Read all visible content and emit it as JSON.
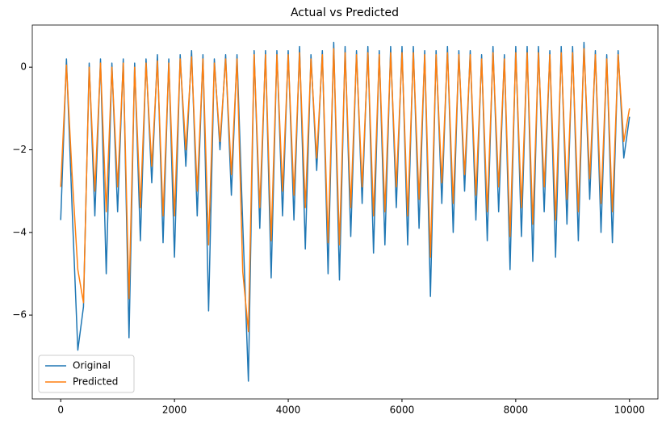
{
  "chart_data": {
    "type": "line",
    "title": "Actual vs Predicted",
    "x": [
      0,
      100,
      200,
      300,
      400,
      500,
      600,
      700,
      800,
      900,
      1000,
      1100,
      1200,
      1300,
      1400,
      1500,
      1600,
      1700,
      1800,
      1900,
      2000,
      2100,
      2200,
      2300,
      2400,
      2500,
      2600,
      2700,
      2800,
      2900,
      3000,
      3100,
      3200,
      3300,
      3400,
      3500,
      3600,
      3700,
      3800,
      3900,
      4000,
      4100,
      4200,
      4300,
      4400,
      4500,
      4600,
      4700,
      4800,
      4900,
      5000,
      5100,
      5200,
      5300,
      5400,
      5500,
      5600,
      5700,
      5800,
      5900,
      6000,
      6100,
      6200,
      6300,
      6400,
      6500,
      6600,
      6700,
      6800,
      6900,
      7000,
      7100,
      7200,
      7300,
      7400,
      7500,
      7600,
      7700,
      7800,
      7900,
      8000,
      8100,
      8200,
      8300,
      8400,
      8500,
      8600,
      8700,
      8800,
      8900,
      9000,
      9100,
      9200,
      9300,
      9400,
      9500,
      9600,
      9700,
      9800,
      9900,
      10000
    ],
    "series": [
      {
        "name": "Original",
        "color": "#1f77b4",
        "values": [
          -3.7,
          0.2,
          -3.4,
          -6.85,
          -5.8,
          0.1,
          -3.6,
          0.2,
          -5.0,
          0.1,
          -3.5,
          0.2,
          -6.55,
          0.1,
          -4.2,
          0.2,
          -2.8,
          0.3,
          -4.25,
          0.2,
          -4.6,
          0.3,
          -2.4,
          0.4,
          -3.6,
          0.3,
          -5.9,
          0.2,
          -2.0,
          0.3,
          -3.1,
          0.3,
          -3.8,
          -7.6,
          0.4,
          -3.9,
          0.4,
          -5.1,
          0.4,
          -3.6,
          0.4,
          -3.7,
          0.5,
          -4.4,
          0.3,
          -2.5,
          0.4,
          -5.0,
          0.6,
          -5.15,
          0.5,
          -4.1,
          0.4,
          -3.3,
          0.5,
          -4.5,
          0.4,
          -4.3,
          0.5,
          -3.4,
          0.5,
          -4.3,
          0.5,
          -3.9,
          0.4,
          -5.55,
          0.4,
          -3.3,
          0.5,
          -4.0,
          0.4,
          -3.0,
          0.4,
          -3.7,
          0.3,
          -4.2,
          0.5,
          -3.5,
          0.3,
          -4.9,
          0.5,
          -4.1,
          0.5,
          -4.7,
          0.5,
          -3.5,
          0.4,
          -4.6,
          0.5,
          -3.8,
          0.5,
          -4.2,
          0.6,
          -3.2,
          0.4,
          -4.0,
          0.3,
          -4.25,
          0.4,
          -2.2,
          -1.2
        ]
      },
      {
        "name": "Predicted",
        "color": "#ff7f0e",
        "values": [
          -2.9,
          0.05,
          -2.6,
          -4.9,
          -5.7,
          0.0,
          -3.0,
          0.1,
          -3.5,
          0.0,
          -2.9,
          0.1,
          -5.6,
          0.0,
          -3.4,
          0.1,
          -2.4,
          0.15,
          -3.6,
          0.1,
          -3.6,
          0.2,
          -2.0,
          0.25,
          -3.0,
          0.2,
          -4.3,
          0.1,
          -1.8,
          0.2,
          -2.6,
          0.2,
          -4.95,
          -6.4,
          0.3,
          -3.4,
          0.3,
          -4.2,
          0.3,
          -3.0,
          0.3,
          -3.1,
          0.35,
          -3.4,
          0.2,
          -2.2,
          0.3,
          -4.25,
          0.45,
          -4.3,
          0.35,
          -3.4,
          0.3,
          -2.9,
          0.35,
          -3.6,
          0.3,
          -3.5,
          0.35,
          -2.9,
          0.35,
          -3.6,
          0.35,
          -3.2,
          0.3,
          -4.6,
          0.3,
          -2.8,
          0.35,
          -3.3,
          0.3,
          -2.6,
          0.3,
          -3.1,
          0.2,
          -3.5,
          0.35,
          -2.9,
          0.2,
          -4.1,
          0.35,
          -3.4,
          0.35,
          -3.8,
          0.35,
          -2.9,
          0.3,
          -3.7,
          0.35,
          -3.2,
          0.35,
          -3.5,
          0.45,
          -2.7,
          0.3,
          -3.3,
          0.2,
          -3.5,
          0.3,
          -1.8,
          -1.0
        ]
      }
    ],
    "xlim": [
      -500,
      10500
    ],
    "ylim": [
      -8.03,
      1.02
    ],
    "xticks": [
      0,
      2000,
      4000,
      6000,
      8000,
      10000
    ],
    "yticks": [
      {
        "value": -6,
        "label": "−6"
      },
      {
        "value": -4,
        "label": "−4"
      },
      {
        "value": -2,
        "label": "−2"
      },
      0
    ],
    "legend": "lower left"
  }
}
